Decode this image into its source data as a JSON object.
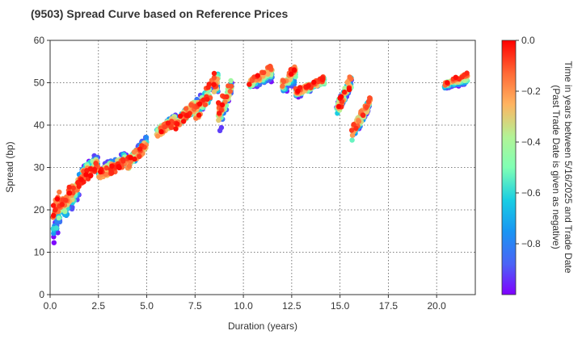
{
  "chart_data": {
    "type": "scatter",
    "title": "(9503)   Spread Curve based on Reference Prices",
    "xlabel": "Duration (years)",
    "ylabel": "Spread (bp)",
    "xlim": [
      0,
      22
    ],
    "ylim": [
      0,
      60
    ],
    "xticks": [
      "0.0",
      "2.5",
      "5.0",
      "7.5",
      "10.0",
      "12.5",
      "15.0",
      "17.5",
      "20.0"
    ],
    "xtick_values": [
      0,
      2.5,
      5,
      7.5,
      10,
      12.5,
      15,
      17.5,
      20
    ],
    "yticks": [
      "0",
      "10",
      "20",
      "30",
      "40",
      "50",
      "60"
    ],
    "ytick_values": [
      0,
      10,
      20,
      30,
      40,
      50,
      60
    ],
    "grid": true,
    "colorbar": {
      "label_line1": "Time in years between 5/16/2025 and Trade Date",
      "label_line2": "(Past Trade Date is given as negative)",
      "range": [
        -1.0,
        0.0
      ],
      "ticks": [
        "0.0",
        "−0.2",
        "−0.4",
        "−0.6",
        "−0.8"
      ],
      "tick_values": [
        0.0,
        -0.2,
        -0.4,
        -0.6,
        -0.8
      ],
      "colormap": "rainbow"
    },
    "clusters": [
      {
        "x": [
          0.15,
          0.6
        ],
        "y_recent": [
          20,
          24
        ],
        "y_old": [
          13,
          20
        ],
        "spread": 5
      },
      {
        "x": [
          0.6,
          1.5
        ],
        "y_recent": [
          22,
          27
        ],
        "y_old": [
          17,
          24
        ],
        "spread": 3
      },
      {
        "x": [
          1.5,
          2.5
        ],
        "y_recent": [
          27,
          30
        ],
        "y_old": [
          29,
          33
        ],
        "spread": 2.5
      },
      {
        "x": [
          2.5,
          4.0
        ],
        "y_recent": [
          28,
          31
        ],
        "y_old": [
          29,
          33
        ],
        "spread": 2.5
      },
      {
        "x": [
          4.0,
          5.0
        ],
        "y_recent": [
          31,
          35
        ],
        "y_old": [
          30,
          37
        ],
        "spread": 2.5
      },
      {
        "x": [
          5.5,
          6.5
        ],
        "y_recent": [
          38,
          41
        ],
        "y_old": [
          38,
          42
        ],
        "spread": 2
      },
      {
        "x": [
          6.5,
          7.5
        ],
        "y_recent": [
          40,
          45
        ],
        "y_old": [
          41,
          44
        ],
        "spread": 2.5
      },
      {
        "x": [
          7.5,
          8.7
        ],
        "y_recent": [
          42,
          52
        ],
        "y_old": [
          44,
          49
        ],
        "spread": 4
      },
      {
        "x": [
          8.7,
          9.4
        ],
        "y_recent": [
          44,
          50
        ],
        "y_old": [
          38,
          49
        ],
        "spread": 3
      },
      {
        "x": [
          10.3,
          11.5
        ],
        "y_recent": [
          50,
          54
        ],
        "y_old": [
          49,
          51
        ],
        "spread": 1.5
      },
      {
        "x": [
          12.0,
          12.7
        ],
        "y_recent": [
          50,
          54
        ],
        "y_old": [
          48,
          50
        ],
        "spread": 1.5
      },
      {
        "x": [
          12.7,
          14.2
        ],
        "y_recent": [
          48,
          51
        ],
        "y_old": [
          47,
          50
        ],
        "spread": 1.5
      },
      {
        "x": [
          14.8,
          15.6
        ],
        "y_recent": [
          43,
          51
        ],
        "y_old": [
          44,
          50
        ],
        "spread": 3
      },
      {
        "x": [
          15.6,
          16.6
        ],
        "y_recent": [
          39,
          46
        ],
        "y_old": [
          36,
          46
        ],
        "spread": 2.5
      },
      {
        "x": [
          20.4,
          21.6
        ],
        "y_recent": [
          50,
          52
        ],
        "y_old": [
          49,
          50
        ],
        "spread": 1
      }
    ]
  }
}
